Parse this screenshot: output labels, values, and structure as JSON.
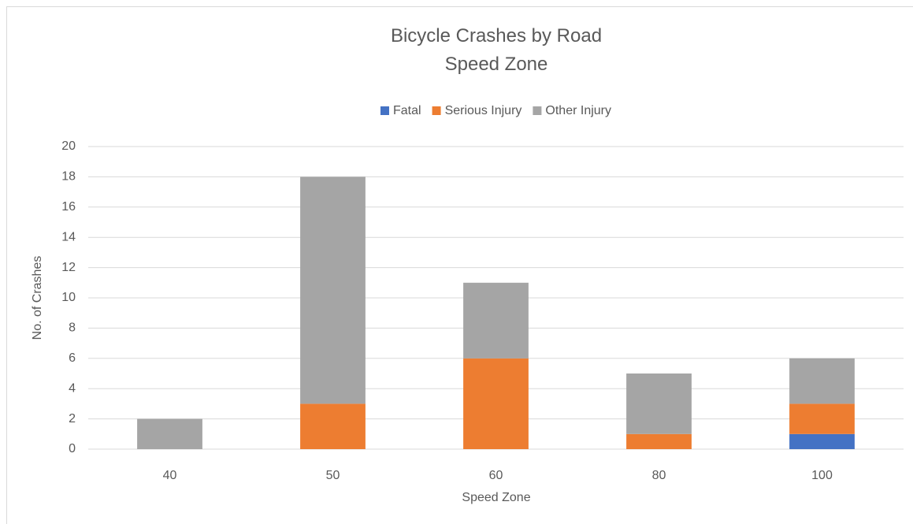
{
  "chart_data": {
    "type": "stacked_bar",
    "title": "Bicycle Crashes by Road Speed Zone",
    "x_label": "Speed Zone",
    "y_label": "No. of Crashes",
    "categories": [
      "40",
      "50",
      "60",
      "80",
      "100"
    ],
    "series": [
      {
        "name": "Fatal",
        "color": "#4472c4",
        "values": [
          0,
          0,
          0,
          0,
          1
        ]
      },
      {
        "name": "Serious Injury",
        "color": "#ed7d31",
        "values": [
          0,
          3,
          6,
          1,
          2
        ]
      },
      {
        "name": "Other Injury",
        "color": "#a5a5a5",
        "values": [
          2,
          15,
          5,
          4,
          3
        ]
      }
    ],
    "ylim": [
      0,
      20
    ],
    "yticks": [
      0,
      2,
      4,
      6,
      8,
      10,
      12,
      14,
      16,
      18,
      20
    ],
    "grid": true,
    "legend": "top"
  }
}
